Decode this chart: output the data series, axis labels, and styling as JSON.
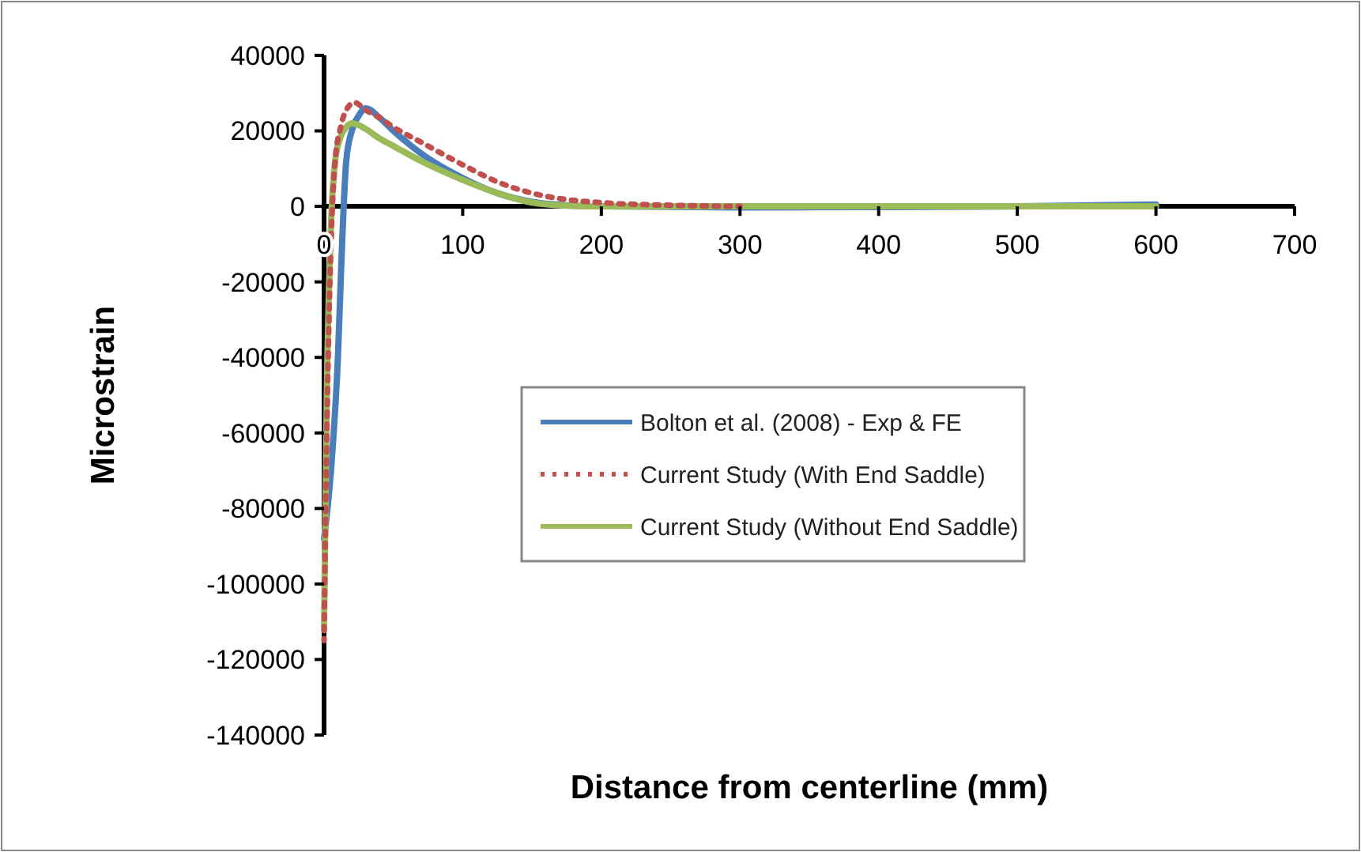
{
  "chart_data": {
    "type": "line",
    "xlabel": "Distance from centerline (mm)",
    "ylabel": "Microstrain",
    "xlim": [
      0,
      700
    ],
    "xticks": [
      0,
      100,
      200,
      300,
      400,
      500,
      600,
      700
    ],
    "ylim": [
      -140000,
      40000
    ],
    "yticks": [
      -140000,
      -120000,
      -100000,
      -80000,
      -60000,
      -40000,
      -20000,
      0,
      20000,
      40000
    ],
    "grid": false,
    "legend": "right",
    "series": [
      {
        "name": "Bolton et al. (2008) -  Exp & FE",
        "color": "#4a7ebb",
        "line_style": "solid",
        "x": [
          0,
          5,
          10,
          13,
          16,
          20,
          25,
          30,
          40,
          50,
          70,
          100,
          125,
          150,
          175,
          200,
          300,
          400,
          500,
          600
        ],
        "values": [
          -88000,
          -70000,
          -40000,
          -10000,
          12000,
          20000,
          24000,
          26000,
          23500,
          20000,
          14000,
          7500,
          3500,
          1200,
          300,
          0,
          -300,
          -200,
          0,
          500
        ]
      },
      {
        "name": "Current Study (With End Saddle)",
        "color": "#c0504d",
        "line_style": "dotted",
        "x": [
          0,
          2,
          5,
          8,
          12,
          16,
          22,
          30,
          40,
          50,
          70,
          100,
          125,
          150,
          175,
          200,
          250,
          300
        ],
        "values": [
          -115000,
          -60000,
          -10000,
          12000,
          21000,
          25500,
          27500,
          25500,
          23500,
          21000,
          17000,
          11000,
          6500,
          3500,
          1800,
          1000,
          300,
          0
        ]
      },
      {
        "name": "Current Study (Without End Saddle)",
        "color": "#9bbb59",
        "line_style": "solid",
        "x": [
          0,
          2,
          5,
          8,
          12,
          16,
          20,
          25,
          30,
          40,
          50,
          70,
          100,
          125,
          150,
          175,
          200,
          300,
          400,
          500,
          600
        ],
        "values": [
          -112000,
          -50000,
          -5000,
          12000,
          18500,
          21000,
          22000,
          21500,
          20500,
          18000,
          16000,
          12000,
          7000,
          3500,
          1000,
          200,
          0,
          0,
          0,
          0,
          0
        ]
      }
    ]
  }
}
